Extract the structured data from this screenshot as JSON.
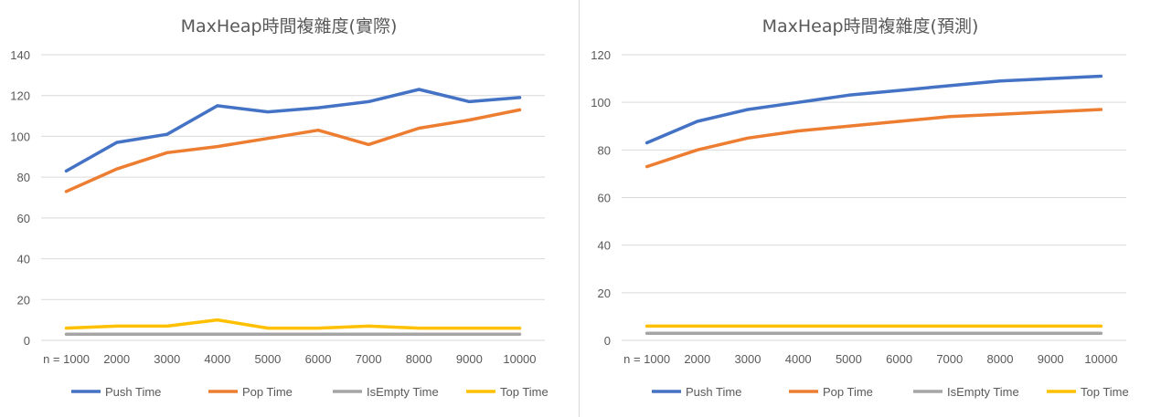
{
  "chart_data": [
    {
      "type": "line",
      "title": "MaxHeap時間複雜度(實際)",
      "categories": [
        "n = 1000",
        "2000",
        "3000",
        "4000",
        "5000",
        "6000",
        "7000",
        "8000",
        "9000",
        "10000"
      ],
      "ylim": [
        0,
        140
      ],
      "yticks": [
        0,
        20,
        40,
        60,
        80,
        100,
        120,
        140
      ],
      "grid": true,
      "legend_position": "bottom",
      "series": [
        {
          "name": "Push Time",
          "color": "#4472C4",
          "values": [
            83,
            97,
            101,
            115,
            112,
            114,
            117,
            123,
            117,
            119
          ]
        },
        {
          "name": "Pop Time",
          "color": "#ED7D31",
          "values": [
            73,
            84,
            92,
            95,
            99,
            103,
            96,
            104,
            108,
            113
          ]
        },
        {
          "name": "IsEmpty Time",
          "color": "#A5A5A5",
          "values": [
            3,
            3,
            3,
            3,
            3,
            3,
            3,
            3,
            3,
            3
          ]
        },
        {
          "name": "Top Time",
          "color": "#FFC000",
          "values": [
            6,
            7,
            7,
            10,
            6,
            6,
            7,
            6,
            6,
            6
          ]
        }
      ]
    },
    {
      "type": "line",
      "title": "MaxHeap時間複雜度(預測)",
      "categories": [
        "n = 1000",
        "2000",
        "3000",
        "4000",
        "5000",
        "6000",
        "7000",
        "8000",
        "9000",
        "10000"
      ],
      "ylim": [
        0,
        120
      ],
      "yticks": [
        0,
        20,
        40,
        60,
        80,
        100,
        120
      ],
      "grid": true,
      "legend_position": "bottom",
      "series": [
        {
          "name": "Push Time",
          "color": "#4472C4",
          "values": [
            83,
            92,
            97,
            100,
            103,
            105,
            107,
            109,
            110,
            111
          ]
        },
        {
          "name": "Pop Time",
          "color": "#ED7D31",
          "values": [
            73,
            80,
            85,
            88,
            90,
            92,
            94,
            95,
            96,
            97
          ]
        },
        {
          "name": "IsEmpty Time",
          "color": "#A5A5A5",
          "values": [
            3,
            3,
            3,
            3,
            3,
            3,
            3,
            3,
            3,
            3
          ]
        },
        {
          "name": "Top Time",
          "color": "#FFC000",
          "values": [
            6,
            6,
            6,
            6,
            6,
            6,
            6,
            6,
            6,
            6
          ]
        }
      ]
    }
  ]
}
